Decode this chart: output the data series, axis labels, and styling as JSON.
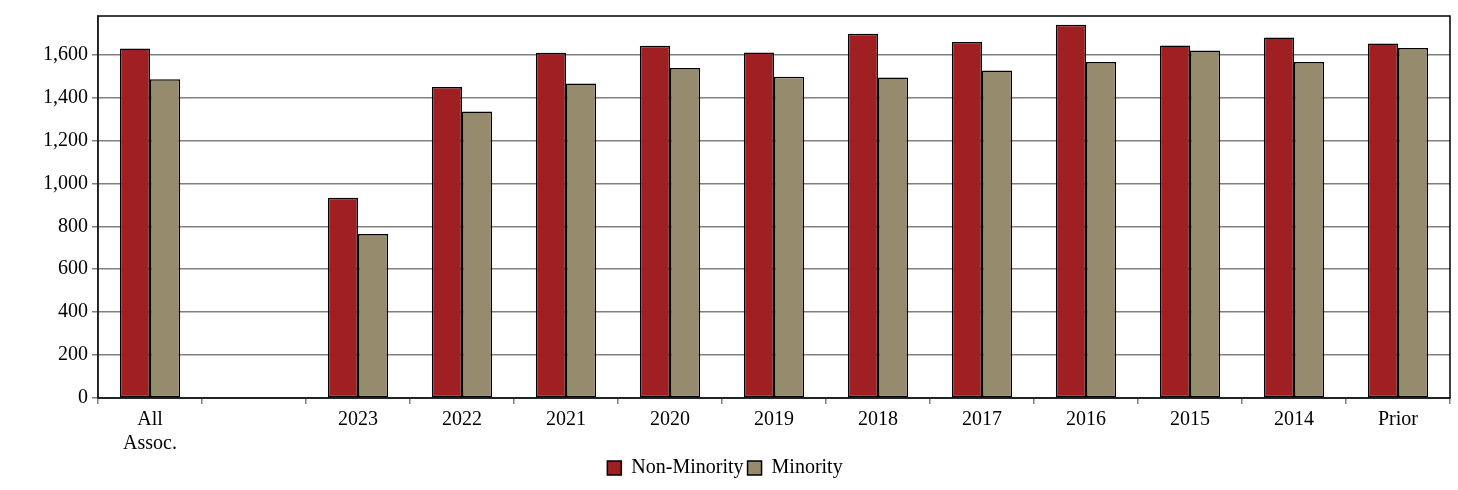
{
  "chart_data": {
    "type": "bar",
    "categories": [
      "All Assoc.",
      null,
      "2023",
      "2022",
      "2021",
      "2020",
      "2019",
      "2018",
      "2017",
      "2016",
      "2015",
      "2014",
      "Prior"
    ],
    "series": [
      {
        "name": "Non-Minority",
        "color": "#a01f22",
        "values": [
          1628,
          null,
          933,
          1449,
          1609,
          1641,
          1610,
          1697,
          1659,
          1739,
          1643,
          1680,
          1652
        ]
      },
      {
        "name": "Minority",
        "color": "#978b6d",
        "values": [
          1485,
          null,
          764,
          1335,
          1465,
          1538,
          1497,
          1494,
          1526,
          1566,
          1619,
          1566,
          1631
        ]
      }
    ],
    "ylim": [
      0,
      1780
    ],
    "yticks": [
      0,
      200,
      400,
      600,
      800,
      {
        "value": 1000,
        "label": "1,000"
      },
      {
        "value": 1200,
        "label": "1,200"
      },
      {
        "value": 1400,
        "label": "1,400"
      },
      {
        "value": 1600,
        "label": "1,600"
      }
    ],
    "grid": "y",
    "legend": "bottom"
  }
}
